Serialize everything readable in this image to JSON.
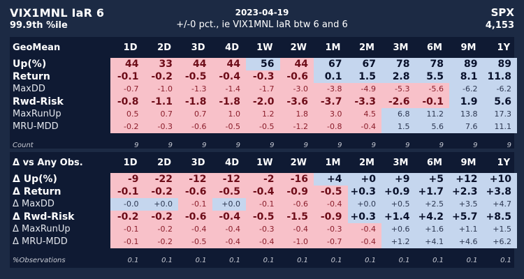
{
  "header": {
    "title": "VIX1MNL IaR 6",
    "subtitle": "99.9th %ile",
    "date": "2023-04-19",
    "description": "+/-0 pct., ie VIX1MNL IaR btw 6 and 6",
    "ticker": "SPX",
    "price": "4,153"
  },
  "colors": {
    "positive_cell": "#c5d6ee",
    "negative_cell": "#f8c1c9",
    "panel_bg": "#0f1a33",
    "page_bg": "#1c2a44"
  },
  "panel1": {
    "header_label": "GeoMean",
    "periods": [
      "1D",
      "2D",
      "3D",
      "4D",
      "1W",
      "2W",
      "1M",
      "2M",
      "3M",
      "6M",
      "9M",
      "1Y"
    ],
    "rows": [
      {
        "label": "Up(%)",
        "style": "big",
        "values": [
          "44",
          "33",
          "44",
          "44",
          "56",
          "44",
          "67",
          "67",
          "78",
          "78",
          "89",
          "89"
        ],
        "signs": [
          "n",
          "n",
          "n",
          "n",
          "p",
          "n",
          "p",
          "p",
          "p",
          "p",
          "p",
          "p"
        ]
      },
      {
        "label": "Return",
        "style": "big",
        "values": [
          "-0.1",
          "-0.2",
          "-0.5",
          "-0.4",
          "-0.3",
          "-0.6",
          "0.1",
          "1.5",
          "2.8",
          "5.5",
          "8.1",
          "11.8"
        ],
        "signs": [
          "n",
          "n",
          "n",
          "n",
          "n",
          "n",
          "p",
          "p",
          "p",
          "p",
          "p",
          "p"
        ]
      },
      {
        "label": "MaxDD",
        "style": "small",
        "values": [
          "-0.7",
          "-1.0",
          "-1.3",
          "-1.4",
          "-1.7",
          "-3.0",
          "-3.8",
          "-4.9",
          "-5.3",
          "-5.6",
          "-6.2",
          "-6.2"
        ],
        "signs": [
          "n",
          "n",
          "n",
          "n",
          "n",
          "n",
          "n",
          "n",
          "n",
          "n",
          "p",
          "p"
        ]
      },
      {
        "label": "Rwd-Risk",
        "style": "big",
        "values": [
          "-0.8",
          "-1.1",
          "-1.8",
          "-1.8",
          "-2.0",
          "-3.6",
          "-3.7",
          "-3.3",
          "-2.6",
          "-0.1",
          "1.9",
          "5.6"
        ],
        "signs": [
          "n",
          "n",
          "n",
          "n",
          "n",
          "n",
          "n",
          "n",
          "n",
          "n",
          "p",
          "p"
        ]
      },
      {
        "label": "MaxRunUp",
        "style": "small",
        "values": [
          "0.5",
          "0.7",
          "0.7",
          "1.0",
          "1.2",
          "1.8",
          "3.0",
          "4.5",
          "6.8",
          "11.2",
          "13.8",
          "17.3"
        ],
        "signs": [
          "n",
          "n",
          "n",
          "n",
          "n",
          "n",
          "n",
          "n",
          "p",
          "p",
          "p",
          "p"
        ]
      },
      {
        "label": "MRU-MDD",
        "style": "small",
        "values": [
          "-0.2",
          "-0.3",
          "-0.6",
          "-0.5",
          "-0.5",
          "-1.2",
          "-0.8",
          "-0.4",
          "1.5",
          "5.6",
          "7.6",
          "11.1"
        ],
        "signs": [
          "n",
          "n",
          "n",
          "n",
          "n",
          "n",
          "n",
          "n",
          "p",
          "p",
          "p",
          "p"
        ]
      }
    ],
    "count_label": "Count",
    "counts": [
      "9",
      "9",
      "9",
      "9",
      "9",
      "9",
      "9",
      "9",
      "9",
      "9",
      "9",
      "9"
    ]
  },
  "panel2": {
    "header_label": "Δ vs Any Obs.",
    "periods": [
      "1D",
      "2D",
      "3D",
      "4D",
      "1W",
      "2W",
      "1M",
      "2M",
      "3M",
      "6M",
      "9M",
      "1Y"
    ],
    "rows": [
      {
        "label": "Δ Up(%)",
        "style": "big",
        "values": [
          "-9",
          "-22",
          "-12",
          "-12",
          "-2",
          "-16",
          "+4",
          "+0",
          "+9",
          "+5",
          "+12",
          "+10"
        ],
        "signs": [
          "n",
          "n",
          "n",
          "n",
          "n",
          "n",
          "p",
          "p",
          "p",
          "p",
          "p",
          "p"
        ]
      },
      {
        "label": "Δ Return",
        "style": "big",
        "values": [
          "-0.1",
          "-0.2",
          "-0.6",
          "-0.5",
          "-0.4",
          "-0.9",
          "-0.5",
          "+0.3",
          "+0.9",
          "+1.7",
          "+2.3",
          "+3.8"
        ],
        "signs": [
          "n",
          "n",
          "n",
          "n",
          "n",
          "n",
          "n",
          "p",
          "p",
          "p",
          "p",
          "p"
        ]
      },
      {
        "label": "Δ MaxDD",
        "style": "small",
        "values": [
          "-0.0",
          "+0.0",
          "-0.1",
          "+0.0",
          "-0.1",
          "-0.6",
          "-0.4",
          "+0.0",
          "+0.5",
          "+2.5",
          "+3.5",
          "+4.7"
        ],
        "signs": [
          "p",
          "p",
          "n",
          "p",
          "n",
          "n",
          "n",
          "p",
          "p",
          "p",
          "p",
          "p"
        ]
      },
      {
        "label": "Δ Rwd-Risk",
        "style": "big",
        "values": [
          "-0.2",
          "-0.2",
          "-0.6",
          "-0.4",
          "-0.5",
          "-1.5",
          "-0.9",
          "+0.3",
          "+1.4",
          "+4.2",
          "+5.7",
          "+8.5"
        ],
        "signs": [
          "n",
          "n",
          "n",
          "n",
          "n",
          "n",
          "n",
          "p",
          "p",
          "p",
          "p",
          "p"
        ]
      },
      {
        "label": "Δ MaxRunUp",
        "style": "small",
        "values": [
          "-0.1",
          "-0.2",
          "-0.4",
          "-0.4",
          "-0.3",
          "-0.4",
          "-0.3",
          "-0.4",
          "+0.6",
          "+1.6",
          "+1.1",
          "+1.5"
        ],
        "signs": [
          "n",
          "n",
          "n",
          "n",
          "n",
          "n",
          "n",
          "n",
          "p",
          "p",
          "p",
          "p"
        ]
      },
      {
        "label": "Δ MRU-MDD",
        "style": "small",
        "values": [
          "-0.1",
          "-0.2",
          "-0.5",
          "-0.4",
          "-0.4",
          "-1.0",
          "-0.7",
          "-0.4",
          "+1.2",
          "+4.1",
          "+4.6",
          "+6.2"
        ],
        "signs": [
          "n",
          "n",
          "n",
          "n",
          "n",
          "n",
          "n",
          "n",
          "p",
          "p",
          "p",
          "p"
        ]
      }
    ],
    "count_label": "%Observations",
    "counts": [
      "0.1",
      "0.1",
      "0.1",
      "0.1",
      "0.1",
      "0.1",
      "0.1",
      "0.1",
      "0.1",
      "0.1",
      "0.1",
      "0.1"
    ]
  }
}
